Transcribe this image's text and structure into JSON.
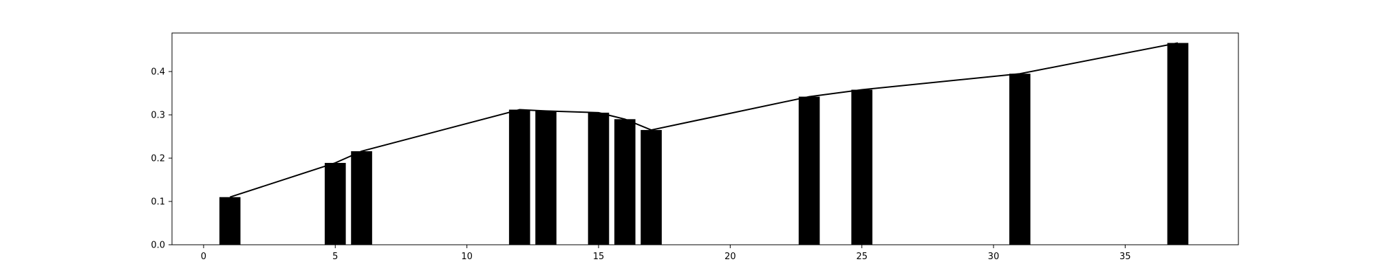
{
  "chart_data": {
    "type": "bar",
    "x": [
      1,
      5,
      6,
      12,
      13,
      15,
      16,
      17,
      23,
      25,
      31,
      37
    ],
    "values": [
      0.11,
      0.189,
      0.216,
      0.312,
      0.309,
      0.305,
      0.29,
      0.265,
      0.342,
      0.358,
      0.395,
      0.466
    ],
    "line_overlay": true,
    "title": "",
    "xlabel": "",
    "ylabel": "",
    "xlim": [
      -1.2,
      39.3
    ],
    "ylim": [
      0,
      0.489
    ],
    "xticks": [
      0,
      5,
      10,
      15,
      20,
      25,
      30,
      35
    ],
    "yticks": [
      0.0,
      0.1,
      0.2,
      0.3,
      0.4
    ],
    "ytick_labels": [
      "0.0",
      "0.1",
      "0.2",
      "0.3",
      "0.4"
    ],
    "grid": false,
    "legend": "none",
    "colors": {
      "bar": "#000000",
      "line": "#000000",
      "axes": "#000000",
      "background": "#ffffff"
    }
  }
}
